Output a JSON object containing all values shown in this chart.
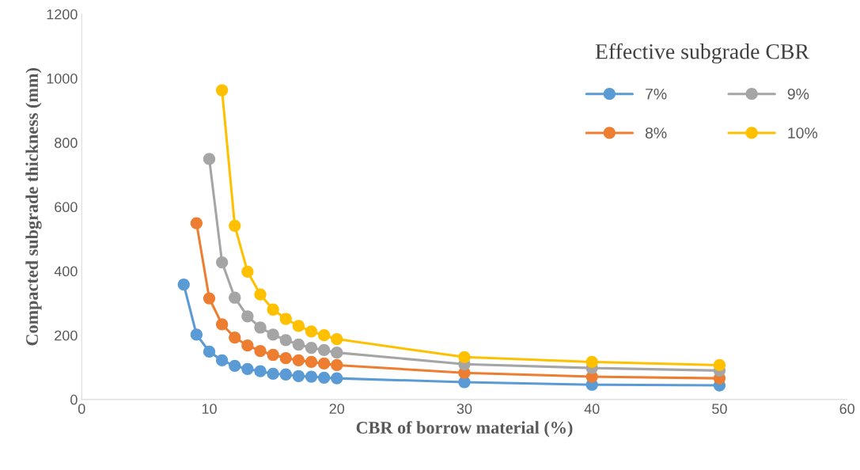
{
  "chart_data": {
    "type": "line",
    "xlabel": "CBR of borrow material (%)",
    "ylabel": "Compacted subgrade thickness (mm)",
    "legend_title": "Effective subgrade CBR",
    "xlim": [
      0,
      60
    ],
    "xticks": [
      0,
      10,
      20,
      30,
      40,
      50,
      60
    ],
    "ylim": [
      0,
      1200
    ],
    "yticks": [
      0,
      200,
      400,
      600,
      800,
      1000,
      1200
    ],
    "grid": false,
    "legend": "top right",
    "marker": "circle",
    "line_style": "solid",
    "series": [
      {
        "name": "7%",
        "color": "#5b9bd5",
        "x": [
          8,
          9,
          10,
          11,
          12,
          13,
          14,
          15,
          16,
          17,
          18,
          19,
          20,
          30,
          40,
          50
        ],
        "values": [
          358,
          202,
          149,
          122,
          105,
          95,
          88,
          80,
          78,
          73,
          71,
          68,
          66,
          54,
          46,
          44
        ]
      },
      {
        "name": "8%",
        "color": "#ed7d31",
        "x": [
          9,
          10,
          11,
          12,
          13,
          14,
          15,
          16,
          17,
          18,
          19,
          20,
          30,
          40,
          50
        ],
        "values": [
          549,
          315,
          234,
          193,
          168,
          151,
          139,
          129,
          122,
          117,
          112,
          107,
          83,
          71,
          66
        ]
      },
      {
        "name": "9%",
        "color": "#a5a5a5",
        "x": [
          10,
          11,
          12,
          13,
          14,
          15,
          16,
          17,
          18,
          19,
          20,
          30,
          40,
          50
        ],
        "values": [
          749,
          427,
          317,
          259,
          224,
          202,
          185,
          171,
          161,
          154,
          146,
          110,
          98,
          90
        ]
      },
      {
        "name": "10%",
        "color": "#ffc000",
        "x": [
          11,
          12,
          13,
          14,
          15,
          16,
          17,
          18,
          19,
          20,
          30,
          40,
          50
        ],
        "values": [
          963,
          541,
          398,
          327,
          280,
          251,
          229,
          212,
          200,
          188,
          132,
          117,
          107
        ]
      }
    ]
  }
}
